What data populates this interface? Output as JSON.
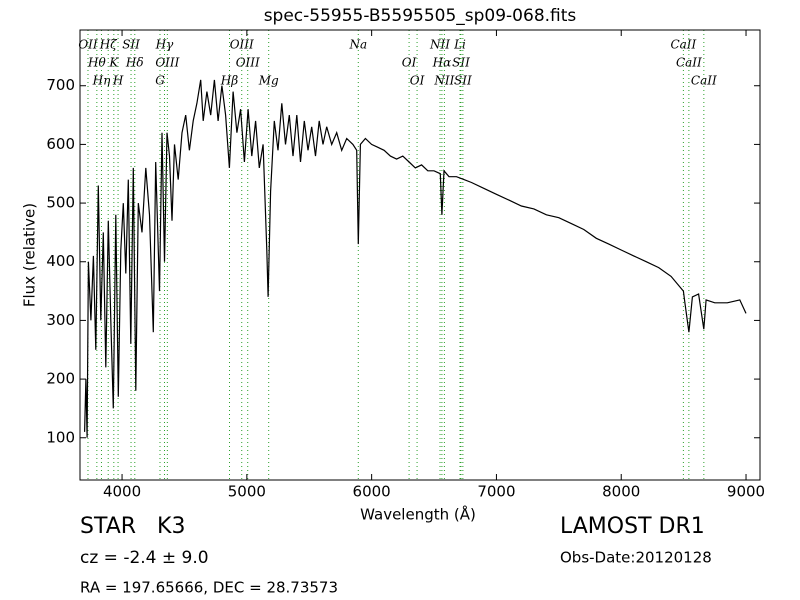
{
  "chart_data": {
    "type": "line",
    "title": "spec-55955-B5595505_sp09-068.fits",
    "x_label": "Wavelength (Å)",
    "y_label": "Flux (relative)",
    "xlim": [
      3663,
      9112
    ],
    "ylim": [
      28,
      795
    ],
    "xticks": [
      4000,
      5000,
      6000,
      7000,
      8000,
      9000
    ],
    "yticks": [
      100,
      200,
      300,
      400,
      500,
      600,
      700
    ],
    "series": [
      {
        "color": "#000000",
        "x": [
          3700,
          3710,
          3720,
          3730,
          3750,
          3770,
          3790,
          3810,
          3830,
          3850,
          3870,
          3890,
          3910,
          3930,
          3950,
          3970,
          3990,
          4010,
          4030,
          4050,
          4070,
          4090,
          4110,
          4130,
          4160,
          4190,
          4220,
          4250,
          4270,
          4300,
          4320,
          4340,
          4360,
          4380,
          4400,
          4420,
          4450,
          4480,
          4510,
          4540,
          4570,
          4600,
          4630,
          4650,
          4680,
          4710,
          4740,
          4770,
          4800,
          4830,
          4860,
          4890,
          4920,
          4950,
          4980,
          5010,
          5040,
          5070,
          5100,
          5130,
          5160,
          5170,
          5190,
          5220,
          5250,
          5280,
          5310,
          5340,
          5370,
          5400,
          5430,
          5460,
          5490,
          5520,
          5550,
          5580,
          5610,
          5640,
          5680,
          5720,
          5760,
          5800,
          5850,
          5880,
          5893,
          5910,
          5950,
          6000,
          6050,
          6100,
          6150,
          6200,
          6250,
          6300,
          6350,
          6400,
          6450,
          6500,
          6550,
          6563,
          6580,
          6620,
          6680,
          6740,
          6800,
          6900,
          7000,
          7100,
          7200,
          7300,
          7400,
          7500,
          7600,
          7700,
          7800,
          7900,
          8000,
          8100,
          8200,
          8300,
          8400,
          8498,
          8510,
          8542,
          8570,
          8620,
          8662,
          8680,
          8750,
          8850,
          8950,
          9000
        ],
        "values": [
          110,
          200,
          100,
          400,
          300,
          410,
          250,
          530,
          300,
          450,
          220,
          470,
          300,
          150,
          480,
          170,
          420,
          500,
          380,
          540,
          260,
          560,
          180,
          500,
          450,
          560,
          480,
          280,
          570,
          350,
          620,
          400,
          620,
          580,
          470,
          600,
          540,
          620,
          650,
          590,
          640,
          670,
          710,
          640,
          690,
          650,
          710,
          640,
          700,
          650,
          560,
          690,
          620,
          660,
          570,
          660,
          580,
          640,
          560,
          600,
          420,
          340,
          520,
          640,
          590,
          670,
          600,
          650,
          580,
          650,
          570,
          640,
          590,
          630,
          580,
          640,
          600,
          630,
          600,
          620,
          590,
          610,
          600,
          590,
          430,
          600,
          610,
          600,
          595,
          590,
          580,
          575,
          580,
          570,
          560,
          565,
          555,
          555,
          550,
          480,
          555,
          545,
          545,
          540,
          535,
          525,
          515,
          505,
          495,
          490,
          480,
          475,
          465,
          455,
          440,
          430,
          420,
          410,
          400,
          390,
          375,
          350,
          330,
          280,
          340,
          345,
          285,
          335,
          330,
          330,
          335,
          312
        ]
      }
    ],
    "line_color": "#2ca02c",
    "lines": [
      {
        "label": "OII",
        "wavelength": 3727
      },
      {
        "label": "Hθ",
        "wavelength": 3798
      },
      {
        "label": "Hη",
        "wavelength": 3835
      },
      {
        "label": "Hζ",
        "wavelength": 3889
      },
      {
        "label": "K",
        "wavelength": 3934
      },
      {
        "label": "H",
        "wavelength": 3968
      },
      {
        "label": "SII",
        "wavelength": 4072
      },
      {
        "label": "Hδ",
        "wavelength": 4102
      },
      {
        "label": "G",
        "wavelength": 4304
      },
      {
        "label": "Hγ",
        "wavelength": 4340
      },
      {
        "label": "OIII",
        "wavelength": 4363
      },
      {
        "label": "Hβ",
        "wavelength": 4861
      },
      {
        "label": "OIII",
        "wavelength": 4959
      },
      {
        "label": "OIII",
        "wavelength": 5007
      },
      {
        "label": "Mg",
        "wavelength": 5175
      },
      {
        "label": "Na",
        "wavelength": 5893
      },
      {
        "label": "OI",
        "wavelength": 6300
      },
      {
        "label": "OI",
        "wavelength": 6364
      },
      {
        "label": "NII",
        "wavelength": 6548
      },
      {
        "label": "Hα",
        "wavelength": 6563
      },
      {
        "label": "NII",
        "wavelength": 6583
      },
      {
        "label": "Li",
        "wavelength": 6708
      },
      {
        "label": "SII",
        "wavelength": 6716
      },
      {
        "label": "SII",
        "wavelength": 6731
      },
      {
        "label": "CaII",
        "wavelength": 8498
      },
      {
        "label": "CaII",
        "wavelength": 8542
      },
      {
        "label": "CaII",
        "wavelength": 8662
      }
    ]
  },
  "info": {
    "class": "STAR   K3",
    "cz": "cz = -2.4 ± 9.0",
    "coords": "RA = 197.65666, DEC = 28.73573",
    "survey": "LAMOST DR1",
    "date": "Obs-Date:20120128"
  }
}
